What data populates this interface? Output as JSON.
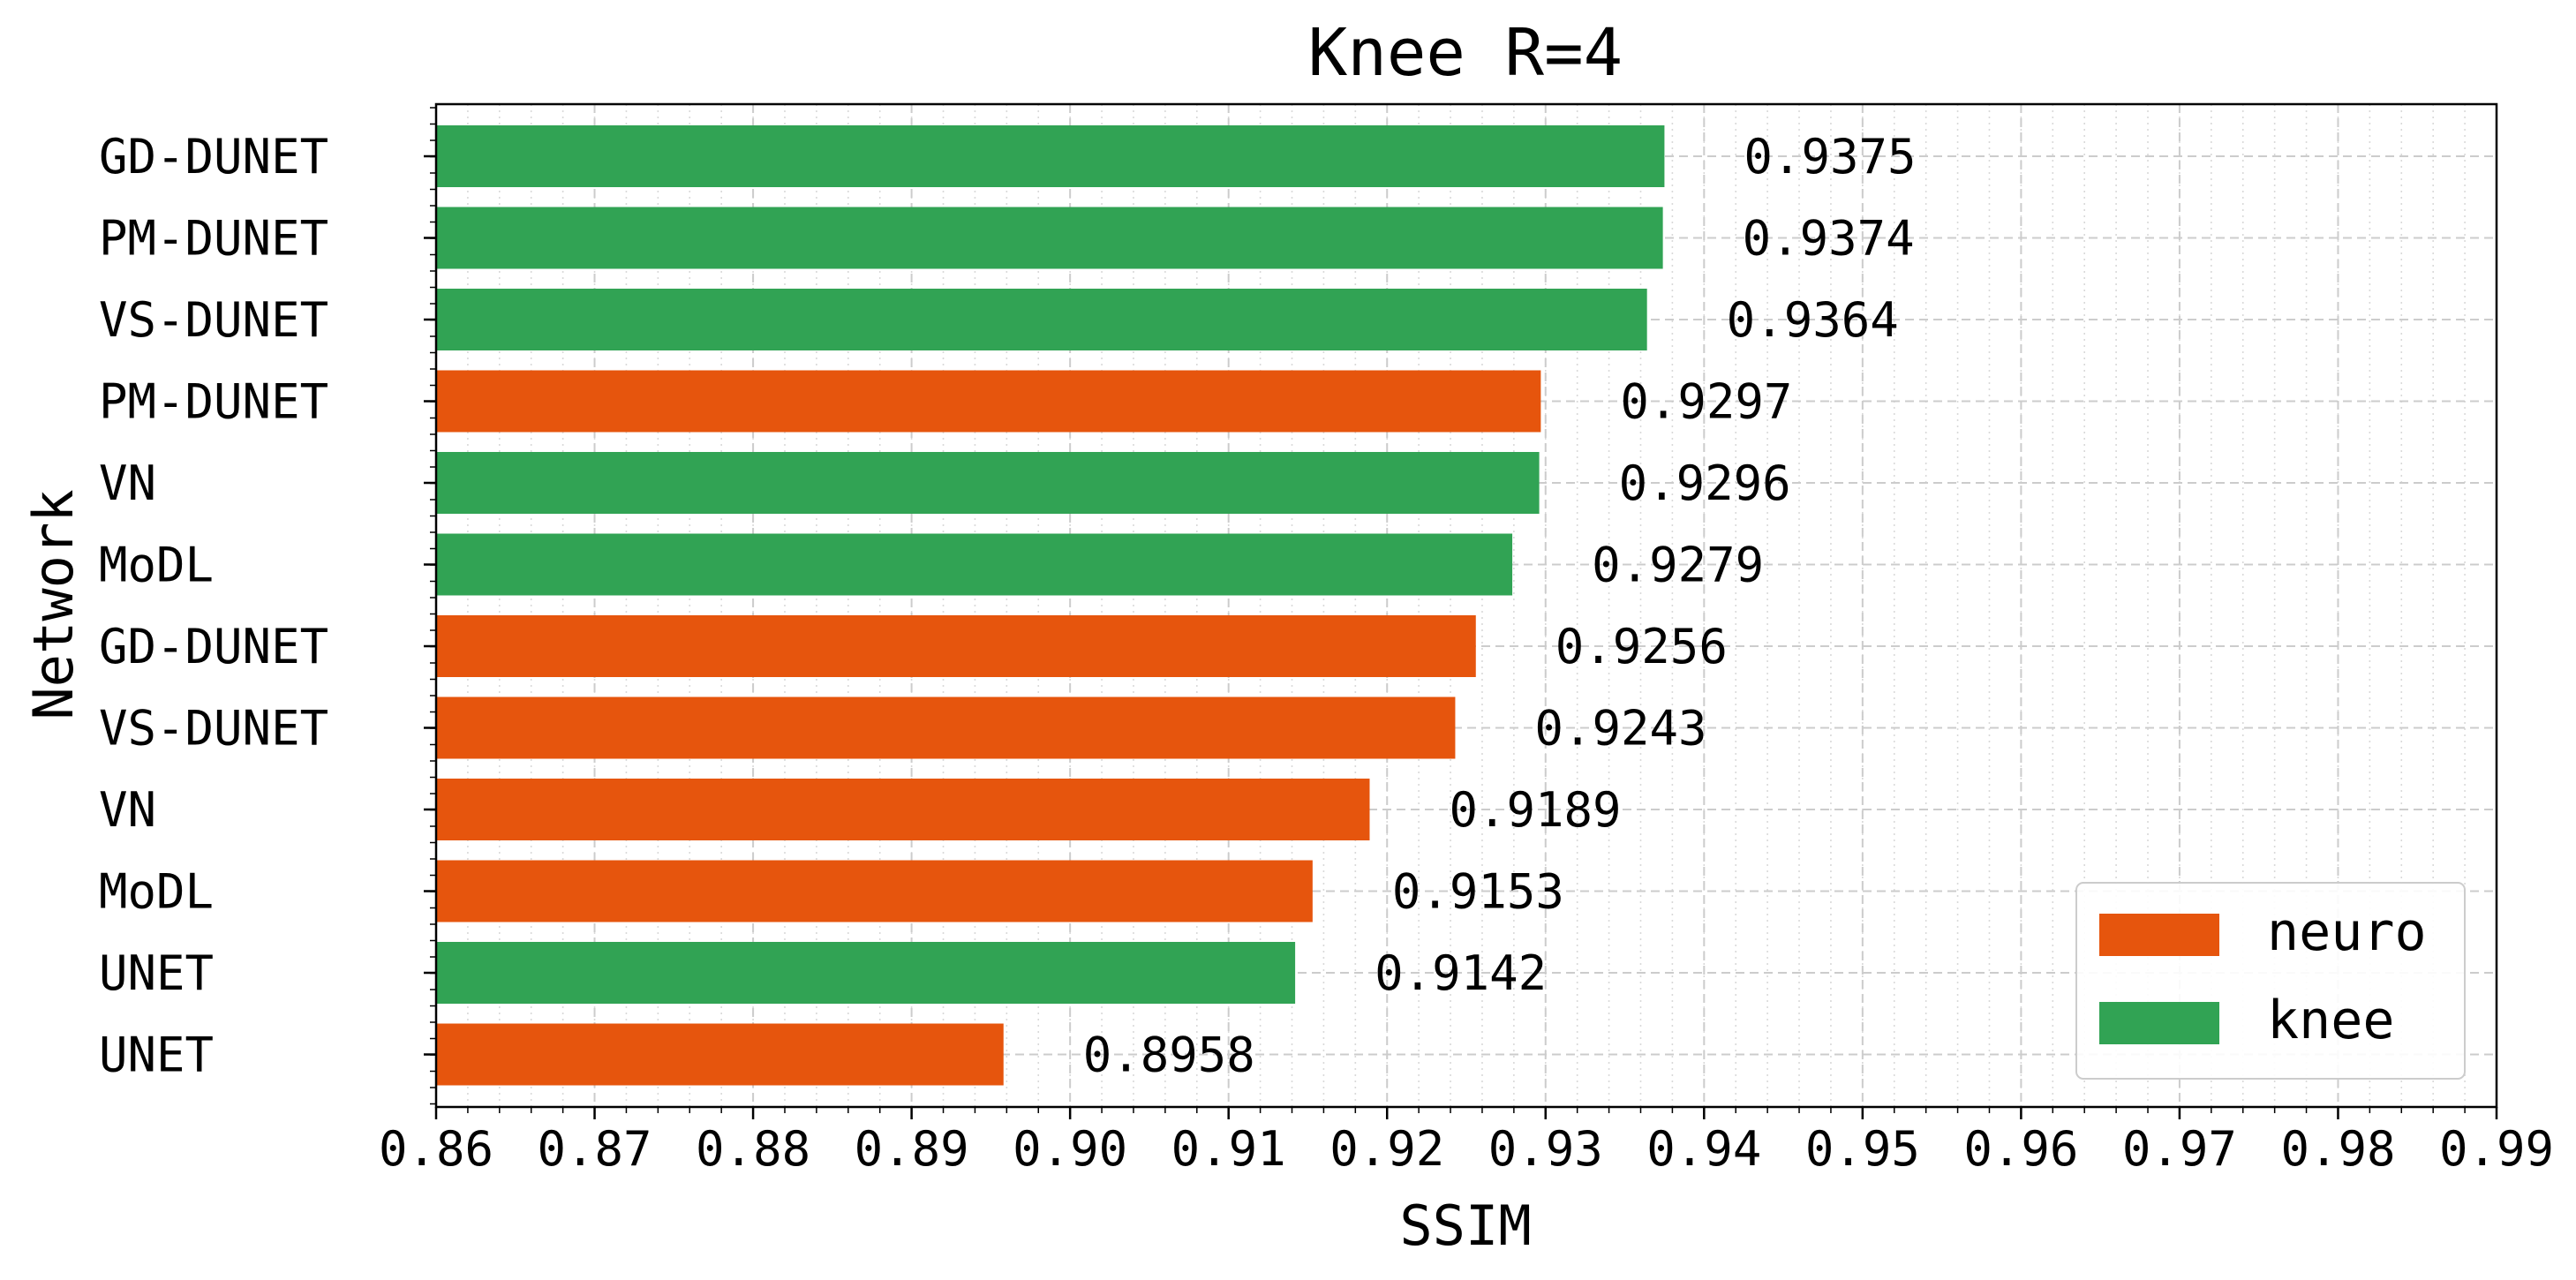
{
  "chart_data": {
    "type": "bar",
    "orientation": "horizontal",
    "title": "Knee R=4",
    "xlabel": "SSIM",
    "ylabel": "Network",
    "xlim": [
      0.86,
      0.99
    ],
    "xticks": [
      "0.86",
      "0.87",
      "0.88",
      "0.89",
      "0.90",
      "0.91",
      "0.92",
      "0.93",
      "0.94",
      "0.95",
      "0.96",
      "0.97",
      "0.98",
      "0.99"
    ],
    "grid": true,
    "legend_position": "bottom-right",
    "legend": [
      {
        "label": "neuro",
        "color": "#e6550d"
      },
      {
        "label": "knee",
        "color": "#31a354"
      }
    ],
    "bars": [
      {
        "category": "GD-DUNET",
        "value": 0.9375,
        "label": "0.9375",
        "group": "knee"
      },
      {
        "category": "PM-DUNET",
        "value": 0.9374,
        "label": "0.9374",
        "group": "knee"
      },
      {
        "category": "VS-DUNET",
        "value": 0.9364,
        "label": "0.9364",
        "group": "knee"
      },
      {
        "category": "PM-DUNET",
        "value": 0.9297,
        "label": "0.9297",
        "group": "neuro"
      },
      {
        "category": "VN",
        "value": 0.9296,
        "label": "0.9296",
        "group": "knee"
      },
      {
        "category": "MoDL",
        "value": 0.9279,
        "label": "0.9279",
        "group": "knee"
      },
      {
        "category": "GD-DUNET",
        "value": 0.9256,
        "label": "0.9256",
        "group": "neuro"
      },
      {
        "category": "VS-DUNET",
        "value": 0.9243,
        "label": "0.9243",
        "group": "neuro"
      },
      {
        "category": "VN",
        "value": 0.9189,
        "label": "0.9189",
        "group": "neuro"
      },
      {
        "category": "MoDL",
        "value": 0.9153,
        "label": "0.9153",
        "group": "neuro"
      },
      {
        "category": "UNET",
        "value": 0.9142,
        "label": "0.9142",
        "group": "knee"
      },
      {
        "category": "UNET",
        "value": 0.8958,
        "label": "0.8958",
        "group": "neuro"
      }
    ]
  }
}
